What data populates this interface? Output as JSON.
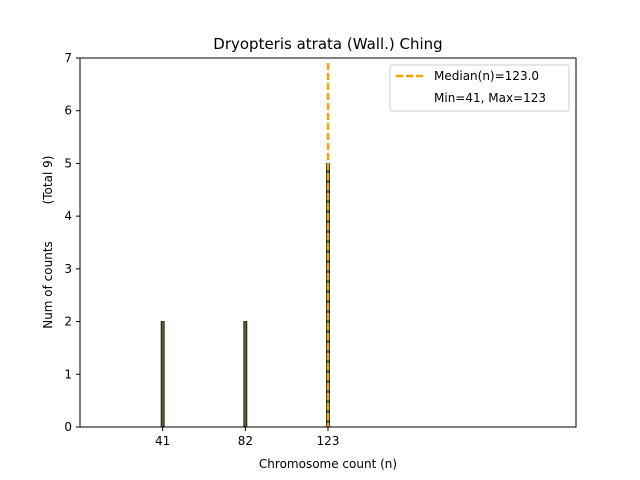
{
  "chart_data": {
    "type": "bar",
    "title": "Dryopteris atrata (Wall.) Ching",
    "xlabel": "Chromosome count (n)",
    "ylabel": "Num of counts",
    "ylabel_total": "(Total 9)",
    "xlim": [
      0,
      246
    ],
    "ylim": [
      0,
      7
    ],
    "x_ticks": [
      41,
      82,
      123
    ],
    "y_ticks": [
      0,
      1,
      2,
      3,
      4,
      5,
      6,
      7
    ],
    "bars": [
      {
        "x": 41,
        "count": 2
      },
      {
        "x": 82,
        "count": 2
      },
      {
        "x": 123,
        "count": 5
      }
    ],
    "median": 123.0,
    "legend": {
      "placement": "top-right",
      "entries": [
        "Median(n)=123.0",
        "Min=41, Max=123"
      ]
    },
    "colors": {
      "bar_fill": "#556b2f",
      "bar_edge": "#000000",
      "median_line": "#f4a30b"
    }
  }
}
